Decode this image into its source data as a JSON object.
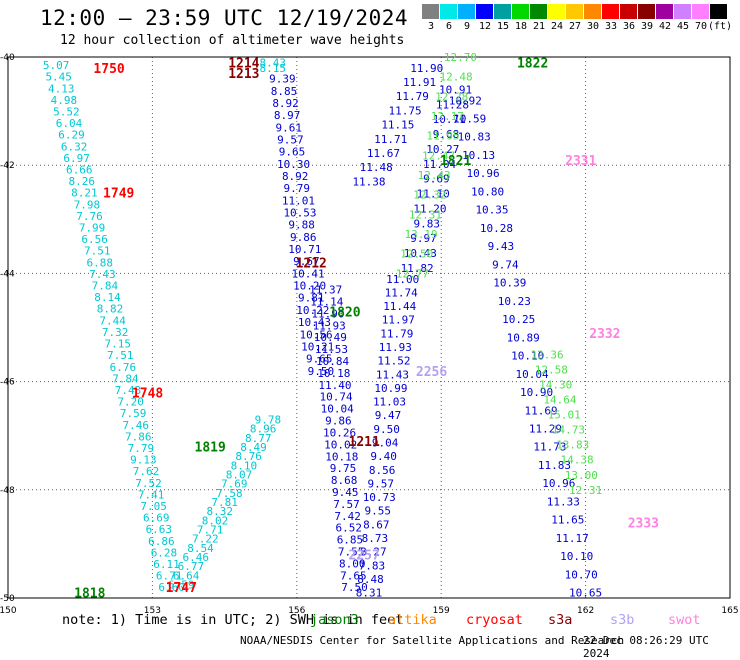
{
  "title": "12:00 — 23:59 UTC 12/19/2024",
  "subtitle": "12 hour collection of altimeter wave heights",
  "colorbar": {
    "colors": [
      "#808080",
      "#00e8e8",
      "#00b0ff",
      "#0000ff",
      "#00a0a0",
      "#00d800",
      "#008800",
      "#ffff00",
      "#ffc800",
      "#ff8800",
      "#ff0000",
      "#c80000",
      "#880000",
      "#a000a0",
      "#d080ff",
      "#ff80ff",
      "#000000"
    ],
    "labels": [
      "3",
      "6",
      "9",
      "12",
      "15",
      "18",
      "21",
      "24",
      "27",
      "30",
      "33",
      "36",
      "39",
      "42",
      "45",
      "70",
      "(ft)"
    ]
  },
  "note": "note: 1) Time is in UTC; 2) SWH is in feet",
  "satellites": [
    {
      "name": "jason3",
      "color": "#008000"
    },
    {
      "name": "altika",
      "color": "#ff8800"
    },
    {
      "name": "cryosat",
      "color": "#ff0000"
    },
    {
      "name": "s3a",
      "color": "#880000"
    },
    {
      "name": "s3b",
      "color": "#b4a0f0"
    },
    {
      "name": "swot",
      "color": "#ff80e0"
    }
  ],
  "footer_left": "NOAA/NESDIS Center for Satellite Applications and Research",
  "footer_right": "22 Dec 08:26:29 UTC 2024",
  "chart_data": {
    "type": "scatter",
    "title": "12:00 — 23:59 UTC 12/19/2024",
    "xlabel": "",
    "ylabel": "",
    "xlim": [
      150,
      165
    ],
    "ylim": [
      -50,
      -40
    ],
    "x_ticks": [
      "150",
      "153",
      "156",
      "159",
      "162",
      "165"
    ],
    "y_ticks": [
      "-40",
      "-42",
      "-44",
      "-46",
      "-48",
      "-50"
    ],
    "grid": true,
    "units": "ft",
    "track_labels": [
      {
        "text": "1750",
        "lon": 152.1,
        "lat": -40.2,
        "color": "#ff0000"
      },
      {
        "text": "1749",
        "lon": 152.3,
        "lat": -42.5,
        "color": "#ff0000"
      },
      {
        "text": "1748",
        "lon": 152.9,
        "lat": -46.2,
        "color": "#ff0000"
      },
      {
        "text": "1747",
        "lon": 153.6,
        "lat": -49.8,
        "color": "#ff0000"
      },
      {
        "text": "1214",
        "lon": 154.9,
        "lat": -40.1,
        "color": "#880000"
      },
      {
        "text": "1213",
        "lon": 154.9,
        "lat": -40.3,
        "color": "#880000"
      },
      {
        "text": "1212",
        "lon": 156.3,
        "lat": -43.8,
        "color": "#880000"
      },
      {
        "text": "1211",
        "lon": 157.4,
        "lat": -47.1,
        "color": "#880000"
      },
      {
        "text": "1820",
        "lon": 157.0,
        "lat": -44.7,
        "color": "#008000"
      },
      {
        "text": "1819",
        "lon": 154.2,
        "lat": -47.2,
        "color": "#008000"
      },
      {
        "text": "1818",
        "lon": 151.7,
        "lat": -49.9,
        "color": "#008000"
      },
      {
        "text": "1821",
        "lon": 159.3,
        "lat": -41.9,
        "color": "#008000"
      },
      {
        "text": "1822",
        "lon": 160.9,
        "lat": -40.1,
        "color": "#008000"
      },
      {
        "text": "2331",
        "lon": 161.9,
        "lat": -41.9,
        "color": "#ff80e0"
      },
      {
        "text": "2332",
        "lon": 162.4,
        "lat": -45.1,
        "color": "#ff80e0"
      },
      {
        "text": "2333",
        "lon": 163.2,
        "lat": -48.6,
        "color": "#ff80e0"
      },
      {
        "text": "2256",
        "lon": 158.8,
        "lat": -45.8,
        "color": "#b4a0f0"
      },
      {
        "text": "2257",
        "lon": 157.4,
        "lat": -49.2,
        "color": "#b4a0f0"
      }
    ],
    "tracks": [
      {
        "color": "#00c8d2",
        "lon1": 151.0,
        "lat1": -40.15,
        "lon2": 153.4,
        "lat2": -49.8,
        "values": [
          "5.07",
          "5.45",
          "4.13",
          "4.98",
          "5.52",
          "6.04",
          "6.29",
          "6.32",
          "6.97",
          "6.66",
          "8.26",
          "8.21",
          "7.98",
          "7.76",
          "7.99",
          "6.56",
          "7.51",
          "6.88",
          "7.43",
          "7.84",
          "8.14",
          "8.82",
          "7.44",
          "7.32",
          "7.15",
          "7.51",
          "6.76",
          "7.84",
          "7.43",
          "7.20",
          "7.59",
          "7.46",
          "7.86",
          "7.79",
          "9.13",
          "7.62",
          "7.52",
          "7.41",
          "7.05",
          "6.69",
          "6.63",
          "6.86",
          "6.28",
          "6.11",
          "6.71",
          "6.60"
        ]
      },
      {
        "color": "#00c8d2",
        "lon1": 153.6,
        "lat1": -49.75,
        "lon2": 155.4,
        "lat2": -46.7,
        "values": [
          "6.59",
          "6.64",
          "6.77",
          "6.46",
          "8.54",
          "7.22",
          "7.71",
          "8.02",
          "8.32",
          "7.81",
          "7.58",
          "7.69",
          "8.07",
          "8.10",
          "8.76",
          "8.49",
          "8.77",
          "8.96",
          "9.78"
        ]
      },
      {
        "color": "#00c8d2",
        "lon1": 155.5,
        "lat1": -40.1,
        "lon2": 155.5,
        "lat2": -40.2,
        "values": [
          "8.43",
          "8.15"
        ]
      },
      {
        "color": "#0000d2",
        "lon1": 155.7,
        "lat1": -40.4,
        "lon2": 156.5,
        "lat2": -45.8,
        "values": [
          "9.39",
          "8.85",
          "8.92",
          "8.97",
          "9.61",
          "9.57",
          "9.65",
          "10.30",
          "8.92",
          "9.79",
          "11.01",
          "10.53",
          "9.88",
          "9.86",
          "10.71",
          "9.67",
          "10.41",
          "10.20",
          "9.81",
          "10.22",
          "10.43",
          "10.56",
          "10.21",
          "9.65",
          "9.50"
        ]
      },
      {
        "color": "#0000d2",
        "lon1": 156.6,
        "lat1": -44.3,
        "lon2": 157.2,
        "lat2": -49.8,
        "values": [
          "11.37",
          "11.14",
          "11.90",
          "11.93",
          "10.49",
          "11.53",
          "10.84",
          "10.18",
          "11.40",
          "10.74",
          "10.04",
          "9.86",
          "10.26",
          "10.02",
          "10.18",
          "9.75",
          "8.68",
          "9.45",
          "7.57",
          "7.42",
          "6.52",
          "6.85",
          "7.55",
          "8.00",
          "7.65",
          "7.50"
        ]
      },
      {
        "color": "#0000d2",
        "lon1": 157.5,
        "lat1": -49.9,
        "lon2": 158.2,
        "lat2": -44.1,
        "values": [
          "8.31",
          "8.48",
          "7.83",
          "8.27",
          "8.73",
          "8.67",
          "9.55",
          "10.73",
          "9.57",
          "8.56",
          "9.40",
          "9.04",
          "9.50",
          "9.47",
          "11.03",
          "10.99",
          "11.43",
          "11.52",
          "11.93",
          "11.79",
          "11.97",
          "11.44",
          "11.74",
          "11.00"
        ]
      },
      {
        "color": "#0000d2",
        "lon1": 158.5,
        "lat1": -43.9,
        "lon2": 159.3,
        "lat2": -40.6,
        "values": [
          "11.82",
          "10.43",
          "9.97",
          "9.83",
          "11.20",
          "11.10",
          "9.69",
          "11.04",
          "10.27",
          "9.68",
          "10.71",
          "11.28",
          "10.91"
        ]
      },
      {
        "color": "#0000d2",
        "lon1": 157.5,
        "lat1": -42.3,
        "lon2": 158.7,
        "lat2": -40.2,
        "values": [
          "11.38",
          "11.48",
          "11.67",
          "11.71",
          "11.15",
          "11.75",
          "11.79",
          "11.91",
          "11.90"
        ]
      },
      {
        "color": "#0000d2",
        "lon1": 159.5,
        "lat1": -40.8,
        "lon2": 162.0,
        "lat2": -49.9,
        "values": [
          "10.92",
          "10.59",
          "10.83",
          "10.13",
          "10.96",
          "10.80",
          "10.35",
          "10.28",
          "9.43",
          "9.74",
          "10.39",
          "10.23",
          "10.25",
          "10.89",
          "10.10",
          "10.04",
          "10.90",
          "11.69",
          "11.29",
          "11.73",
          "11.83",
          "10.96",
          "11.33",
          "11.65",
          "11.17",
          "10.10",
          "10.70",
          "10.65"
        ]
      },
      {
        "color": "#50e050",
        "lon1": 158.4,
        "lat1": -44.0,
        "lon2": 159.4,
        "lat2": -40.0,
        "values": [
          "12.77",
          "12.50",
          "13.19",
          "12.31",
          "12.32",
          "12.43",
          "12.47",
          "11.95",
          "12.17",
          "12.28",
          "12.48",
          "12.70"
        ]
      },
      {
        "color": "#50e050",
        "lon1": 161.2,
        "lat1": -45.5,
        "lon2": 162.0,
        "lat2": -48.0,
        "values": [
          "12.36",
          "12.58",
          "14.30",
          "14.64",
          "15.01",
          "14.73",
          "13.83",
          "14.38",
          "13.00",
          "12.31"
        ]
      }
    ]
  }
}
